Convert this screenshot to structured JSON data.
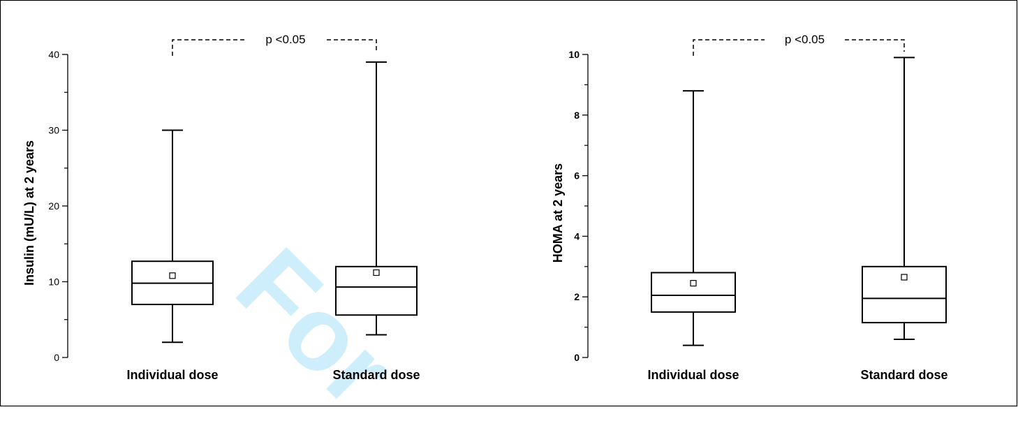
{
  "watermark": {
    "text": "For",
    "color": "#00aeef"
  },
  "chart_data": [
    {
      "type": "box",
      "xlabel": "",
      "ylabel": "Insulin (mU/L) at 2 years",
      "ylim": [
        0,
        40
      ],
      "yticks": [
        0,
        10,
        20,
        30,
        40
      ],
      "bold_ticks": false,
      "annotation": "p <0.05",
      "categories": [
        "Individual dose",
        "Standard dose"
      ],
      "boxes": [
        {
          "category": "Individual dose",
          "min": 2,
          "q1": 7,
          "median": 9.8,
          "q3": 12.7,
          "max": 30,
          "mean": 10.8
        },
        {
          "category": "Standard dose",
          "min": 3,
          "q1": 5.6,
          "median": 9.3,
          "q3": 12,
          "max": 39,
          "mean": 11.2
        }
      ]
    },
    {
      "type": "box",
      "xlabel": "",
      "ylabel": "HOMA at 2 years",
      "ylim": [
        0,
        10
      ],
      "yticks": [
        0,
        2,
        4,
        6,
        8,
        10
      ],
      "bold_ticks": true,
      "annotation": "p <0.05",
      "categories": [
        "Individual dose",
        "Standard dose"
      ],
      "boxes": [
        {
          "category": "Individual dose",
          "min": 0.4,
          "q1": 1.5,
          "median": 2.05,
          "q3": 2.8,
          "max": 8.8,
          "mean": 2.45
        },
        {
          "category": "Standard dose",
          "min": 0.6,
          "q1": 1.15,
          "median": 1.95,
          "q3": 3,
          "max": 9.9,
          "mean": 2.65
        }
      ]
    }
  ]
}
